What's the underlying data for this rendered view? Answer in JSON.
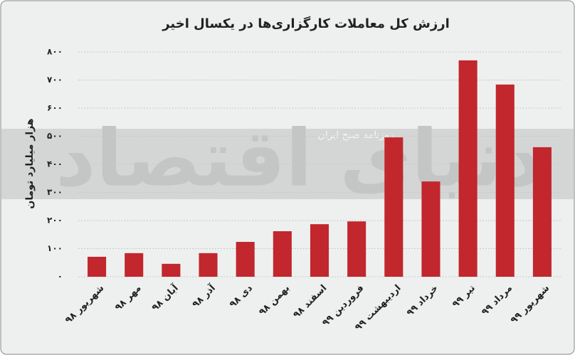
{
  "chart_data": {
    "type": "bar",
    "title": "ارزش کل معاملات کارگزاری‌ها در یکسال اخیر",
    "y_label": "هزار میلیارد تومان",
    "categories": [
      "شهریور ۹۸",
      "مهر ۹۸",
      "آبان ۹۸",
      "آذر ۹۸",
      "دی ۹۸",
      "بهمن ۹۸",
      "اسفند ۹۸",
      "فروردین ۹۹",
      "اردیبهشت ۹۹",
      "خرداد ۹۹",
      "تیر ۹۹",
      "مرداد ۹۹",
      "شهریور ۹۹"
    ],
    "values": [
      71,
      84,
      46,
      84,
      124,
      162,
      187,
      197,
      496,
      339,
      770,
      684,
      461
    ],
    "color": "#c1272d",
    "ylim": [
      0,
      800
    ],
    "yticks": [
      {
        "value": 0,
        "label": "۰"
      },
      {
        "value": 100,
        "label": "۱۰۰"
      },
      {
        "value": 200,
        "label": "۲۰۰"
      },
      {
        "value": 300,
        "label": "۳۰۰"
      },
      {
        "value": 400,
        "label": "۴۰۰"
      },
      {
        "value": 500,
        "label": "۵۰۰"
      },
      {
        "value": 600,
        "label": "۶۰۰"
      },
      {
        "value": 700,
        "label": "۷۰۰"
      },
      {
        "value": 800,
        "label": "۸۰۰"
      }
    ],
    "grid": true
  },
  "watermark": {
    "brand": "دنیای اقتصاد",
    "tagline": "روزنامه صبح ایران"
  }
}
